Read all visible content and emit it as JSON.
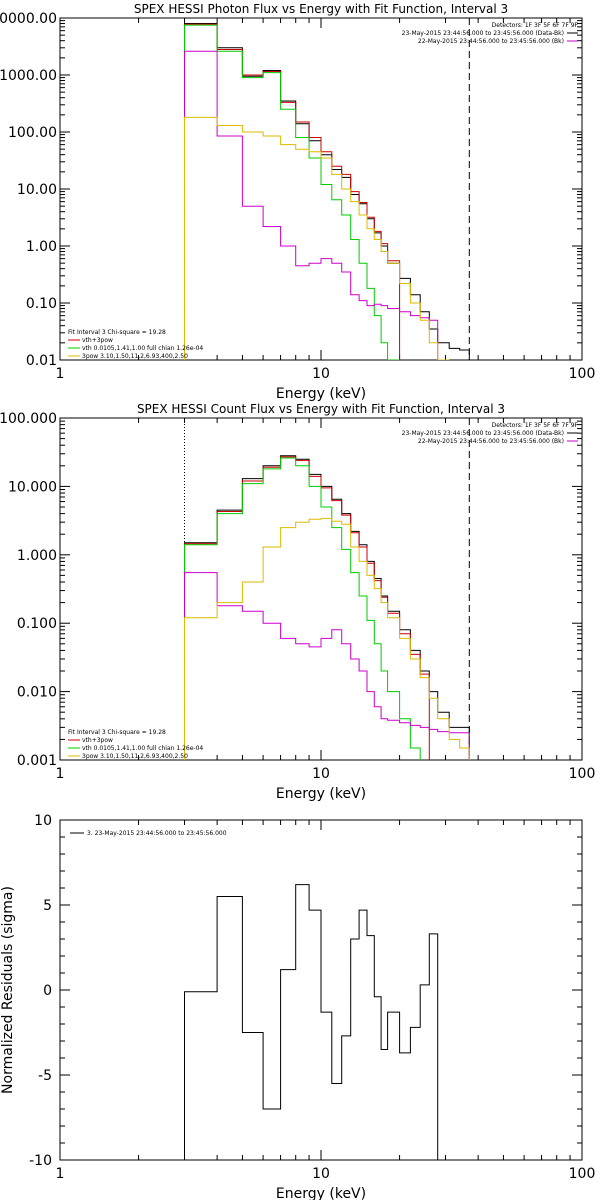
{
  "chart_data": [
    {
      "type": "line",
      "title": "SPEX HESSI Photon Flux vs Energy with Fit Function, Interval 3",
      "xlabel": "Energy (keV)",
      "ylabel": "",
      "xscale": "log",
      "yscale": "log",
      "xlim": [
        1,
        100
      ],
      "ylim": [
        0.01,
        10000
      ],
      "x_ticks": [
        "1",
        "10",
        "100"
      ],
      "y_ticks": [
        "0.01",
        "0.10",
        "1.00",
        "10.00",
        "100.00",
        "1000.00",
        "10000.00"
      ],
      "vlines": [
        {
          "x": 3.0,
          "style": "dotted"
        },
        {
          "x": 37.0,
          "style": "dashed"
        }
      ],
      "legend_top": {
        "position": "top-right",
        "lines": [
          {
            "text": "Detectors: 1F 3F 5F 6F 7F 9F",
            "color": ""
          },
          {
            "text": "23-May-2015 23:44:56.000 to 23:45:56.000 (Data-Bk)",
            "color": "#000000"
          },
          {
            "text": "22-May-2015 23:44:56.000 to 23:45:56.000 (Bk)",
            "color": "#cc00cc"
          }
        ]
      },
      "legend_bottom": {
        "position": "bottom-left",
        "lines": [
          {
            "text": "Fit Interval 3   Chi-square = 19.28",
            "color": ""
          },
          {
            "text": "vth+3pow",
            "color": "#cc0000"
          },
          {
            "text": "vth 0.0105,1.41,1.00  full chian 1.26e-04",
            "color": "#00cc00"
          },
          {
            "text": "3pow 3.10,1.50,11.2,6.93,400,2.50",
            "color": "#ddbb00"
          }
        ]
      },
      "bin_edges": [
        3,
        4,
        5,
        6,
        7,
        8,
        9,
        10,
        11,
        12,
        13,
        14,
        15,
        16,
        17,
        18,
        20,
        22,
        24,
        26,
        28,
        31,
        34,
        37
      ],
      "series": [
        {
          "color": "#000000",
          "values": [
            8000,
            3000,
            950,
            1200,
            350,
            140,
            70,
            40,
            22,
            16,
            8,
            5.5,
            3,
            1.7,
            1.0,
            0.5,
            0.27,
            0.14,
            0.07,
            0.035,
            0.02,
            0.016,
            0.015
          ]
        },
        {
          "color": "#cc0000",
          "values": [
            7800,
            2800,
            1000,
            1150,
            330,
            150,
            80,
            45,
            25,
            18,
            9,
            5.8,
            3.2,
            1.8,
            1.1,
            0.55
          ]
        },
        {
          "color": "#00cc00",
          "values": [
            7500,
            2600,
            900,
            1100,
            250,
            80,
            35,
            12,
            6.5,
            3.5,
            1.3,
            0.5,
            0.18,
            0.06,
            0.02,
            0.01
          ]
        },
        {
          "color": "#cc00cc",
          "values": [
            2600,
            85,
            5,
            2.2,
            1.0,
            0.45,
            0.5,
            0.6,
            0.5,
            0.35,
            0.14,
            0.11,
            0.09,
            0.095,
            0.09,
            0.08,
            0.07,
            0.06,
            0.055,
            0.05
          ]
        },
        {
          "color": "#ddbb00",
          "values": [
            180,
            130,
            100,
            85,
            60,
            50,
            45,
            35,
            18,
            10,
            6,
            3.5,
            2,
            1.3,
            0.8,
            0.5,
            0.22,
            0.1,
            0.05,
            0.02,
            0.01
          ]
        }
      ]
    },
    {
      "type": "line",
      "title": "SPEX HESSI Count Flux vs Energy with Fit Function, Interval 3",
      "xlabel": "Energy (keV)",
      "ylabel": "",
      "xscale": "log",
      "yscale": "log",
      "xlim": [
        1,
        100
      ],
      "ylim": [
        0.001,
        100
      ],
      "x_ticks": [
        "1",
        "10",
        "100"
      ],
      "y_ticks": [
        "0.001",
        "0.010",
        "0.100",
        "1.000",
        "10.000",
        "100.000"
      ],
      "vlines": [
        {
          "x": 3.0,
          "style": "dotted"
        },
        {
          "x": 37.0,
          "style": "dashed"
        }
      ],
      "legend_top": {
        "position": "top-right",
        "lines": [
          {
            "text": "Detectors: 1F 3F 5F 6F 7F 9F",
            "color": ""
          },
          {
            "text": "23-May-2015 23:44:56.000 to 23:45:56.000 (Data-Bk)",
            "color": "#000000"
          },
          {
            "text": "22-May-2015 23:44:56.000 to 23:45:56.000 (Bk)",
            "color": "#cc00cc"
          }
        ]
      },
      "legend_bottom": {
        "position": "bottom-left",
        "lines": [
          {
            "text": "Fit Interval 3   Chi-square = 19.28",
            "color": ""
          },
          {
            "text": "vth+3pow",
            "color": "#cc0000"
          },
          {
            "text": "vth 0.0105,1.41,1.00  full chian 1.26e-04",
            "color": "#00cc00"
          },
          {
            "text": "3pow 3.10,1.50,11.2,6.93,400,2.50",
            "color": "#ddbb00"
          }
        ]
      },
      "bin_edges": [
        3,
        4,
        5,
        6,
        7,
        8,
        9,
        10,
        11,
        12,
        13,
        14,
        15,
        16,
        17,
        18,
        20,
        22,
        24,
        26,
        28,
        31,
        34,
        37
      ],
      "series": [
        {
          "color": "#000000",
          "values": [
            1.5,
            4.5,
            13,
            20,
            28,
            25,
            15,
            10,
            6.5,
            4,
            2.2,
            1.4,
            0.8,
            0.45,
            0.25,
            0.15,
            0.08,
            0.04,
            0.02,
            0.01,
            0.005,
            0.003,
            0.003
          ]
        },
        {
          "color": "#cc0000",
          "values": [
            1.45,
            4.3,
            12,
            19,
            27,
            24,
            14,
            9.5,
            6.2,
            3.8,
            2.1,
            1.3,
            0.75,
            0.42,
            0.24,
            0.14,
            0.07,
            0.035,
            0.018
          ]
        },
        {
          "color": "#00cc00",
          "values": [
            1.4,
            4.0,
            11,
            18,
            26,
            20,
            10,
            5,
            2.5,
            1.2,
            0.55,
            0.25,
            0.11,
            0.05,
            0.02,
            0.01,
            0.004,
            0.0015
          ]
        },
        {
          "color": "#cc00cc",
          "values": [
            0.55,
            0.18,
            0.15,
            0.1,
            0.06,
            0.05,
            0.045,
            0.06,
            0.08,
            0.05,
            0.03,
            0.02,
            0.01,
            0.006,
            0.004,
            0.0038,
            0.0035,
            0.0032,
            0.003,
            0.0028,
            0.0026,
            0.0025,
            0.0025
          ]
        },
        {
          "color": "#ddbb00",
          "values": [
            0.12,
            0.2,
            0.4,
            1.3,
            2.5,
            3.0,
            3.3,
            3.4,
            3.1,
            2.8,
            1.3,
            0.8,
            0.5,
            0.32,
            0.2,
            0.12,
            0.06,
            0.03,
            0.016,
            0.008,
            0.004,
            0.002,
            0.0015
          ]
        }
      ]
    },
    {
      "type": "line",
      "title": "",
      "xlabel": "Energy (keV)",
      "ylabel": "Normalized Residuals (sigma)",
      "xscale": "log",
      "yscale": "linear",
      "xlim": [
        1,
        100
      ],
      "ylim": [
        -10,
        10
      ],
      "x_ticks": [
        "1",
        "10",
        "100"
      ],
      "y_ticks": [
        "-10",
        "-5",
        "0",
        "5",
        "10"
      ],
      "legend": {
        "position": "top-left",
        "text": "3. 23-May-2015 23:44:56.000 to 23:45:56.000"
      },
      "bin_edges": [
        3,
        4,
        5,
        6,
        7,
        8,
        9,
        10,
        11,
        12,
        13,
        14,
        15,
        16,
        17,
        18,
        20,
        22,
        24,
        26,
        28,
        31,
        34,
        37
      ],
      "series": [
        {
          "color": "#000000",
          "values": [
            -0.1,
            5.5,
            -2.5,
            -7.0,
            1.2,
            6.2,
            4.7,
            -1.3,
            -5.5,
            -2.7,
            3.0,
            4.7,
            3.2,
            -0.4,
            -3.5,
            -1.3,
            -3.7,
            -2.2,
            0.3,
            3.3
          ]
        }
      ]
    }
  ]
}
